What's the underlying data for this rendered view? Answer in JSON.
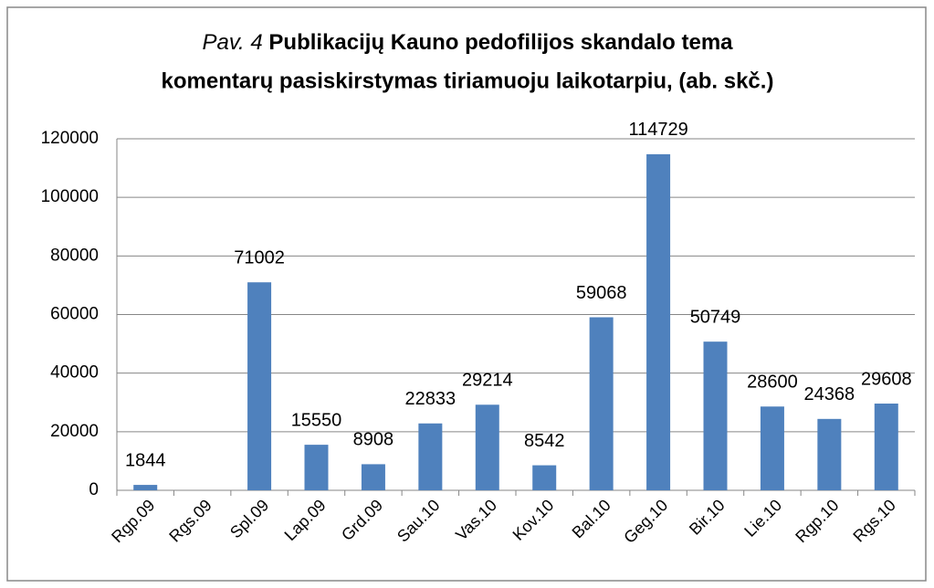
{
  "chart_data": {
    "type": "bar",
    "title": {
      "prefix": "Pav. 4",
      "lines": [
        "Publikacijų Kauno pedofilijos skandalo tema",
        "komentarų pasiskirstymas tiriamuoju laikotarpiu, (ab. skč.)"
      ]
    },
    "categories": [
      "Rgp.09",
      "Rgs.09",
      "Spl.09",
      "Lap.09",
      "Grd.09",
      "Sau.10",
      "Vas.10",
      "Kov.10",
      "Bal.10",
      "Geg.10",
      "Bir.10",
      "Lie.10",
      "Rgp.10",
      "Rgs.10"
    ],
    "values": [
      1844,
      null,
      71002,
      15550,
      8908,
      22833,
      29214,
      8542,
      59068,
      114729,
      50749,
      28600,
      24368,
      29608
    ],
    "color": "#4f81bd",
    "ylim": [
      0,
      120000
    ],
    "yticks": [
      0,
      20000,
      40000,
      60000,
      80000,
      100000,
      120000
    ],
    "grid": true
  }
}
